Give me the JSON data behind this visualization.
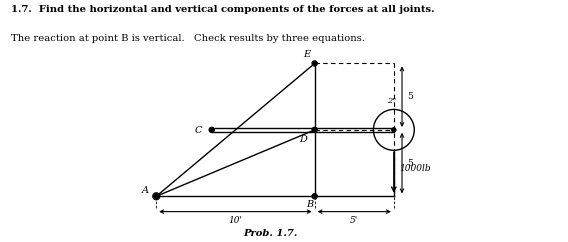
{
  "title_line1": "1.7.  Find the horizontal and vertical components of the forces at all joints.",
  "title_line2": "The reaction at point B is vertical.   Check results by three equations.",
  "caption": "Prob. 1.7.",
  "bg_color": "#ffffff",
  "text_color": "#000000",
  "load_label": "1000lb",
  "dim_label_10": "10'",
  "dim_label_5a": "5'",
  "dim_label_5b": "5",
  "dim_label_5c": "5",
  "dim_label_2": "2\""
}
